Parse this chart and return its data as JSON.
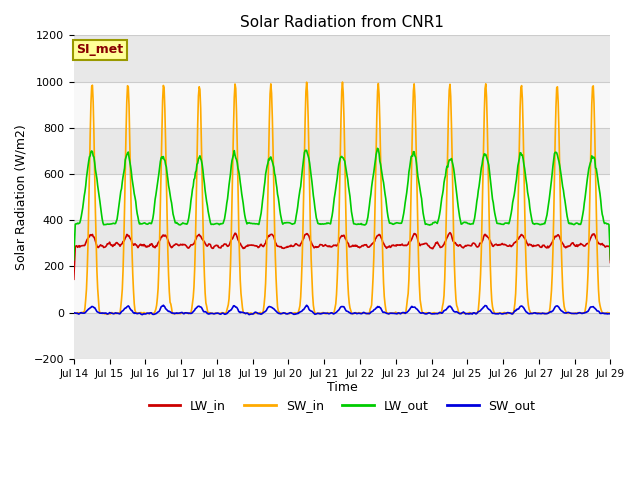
{
  "title": "Solar Radiation from CNR1",
  "ylabel": "Solar Radiation (W/m2)",
  "xlabel": "Time",
  "annotation": "SI_met",
  "ylim": [
    -200,
    1200
  ],
  "yticks": [
    -200,
    0,
    200,
    400,
    600,
    800,
    1000,
    1200
  ],
  "xtick_labels": [
    "Jul 14",
    "Jul 15",
    "Jul 16",
    "Jul 17",
    "Jul 18",
    "Jul 19",
    "Jul 20",
    "Jul 21",
    "Jul 22",
    "Jul 23",
    "Jul 24",
    "Jul 25",
    "Jul 26",
    "Jul 27",
    "Jul 28",
    "Jul 29"
  ],
  "colors": {
    "LW_in": "#cc0000",
    "SW_in": "#ffaa00",
    "LW_out": "#00cc00",
    "SW_out": "#0000dd"
  },
  "band_colors": [
    "#e8e8e8",
    "#f8f8f8"
  ],
  "figure_bg": "#ffffff",
  "outer_bg": "#ffffff",
  "grid_line_color": "#cccccc",
  "annotation_bg": "#ffff99",
  "annotation_fg": "#880000",
  "annotation_border": "#999900"
}
